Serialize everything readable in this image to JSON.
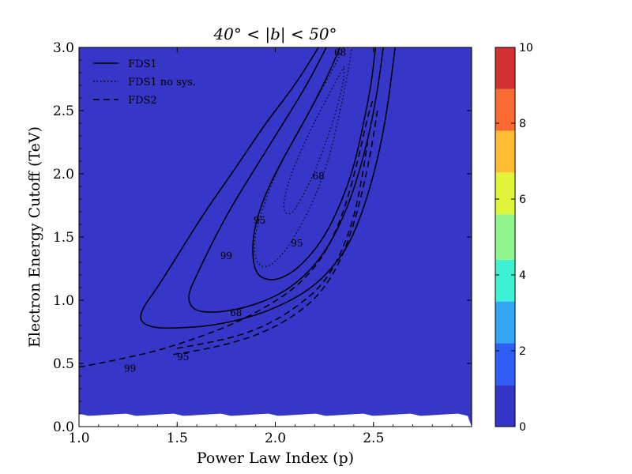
{
  "chart_data": {
    "type": "contour",
    "title": "40° < |b| < 50°",
    "xlabel": "Power Law Index (p)",
    "ylabel": "Electron Energy Cutoff (TeV)",
    "xlim": [
      1.0,
      3.0
    ],
    "ylim": [
      0.0,
      3.0
    ],
    "xticks": [
      "1.0",
      "1.5",
      "2.0",
      "2.5"
    ],
    "yticks": [
      "0.0",
      "0.5",
      "1.0",
      "1.5",
      "2.0",
      "2.5",
      "3.0"
    ],
    "background_level_color": "#3636c8",
    "colorbar": {
      "range": [
        0,
        10
      ],
      "ticks": [
        "0",
        "2",
        "4",
        "6",
        "8",
        "10"
      ],
      "bands": [
        {
          "from": 0,
          "to": 1.1,
          "color": "#3434c6"
        },
        {
          "from": 1.1,
          "to": 2.2,
          "color": "#2f5ef6"
        },
        {
          "from": 2.2,
          "to": 3.3,
          "color": "#32a6f5"
        },
        {
          "from": 3.3,
          "to": 4.4,
          "color": "#3ef0d4"
        },
        {
          "from": 4.4,
          "to": 5.6,
          "color": "#8ef68c"
        },
        {
          "from": 5.6,
          "to": 6.7,
          "color": "#e0f53a"
        },
        {
          "from": 6.7,
          "to": 7.8,
          "color": "#fdbc32"
        },
        {
          "from": 7.8,
          "to": 8.9,
          "color": "#fb6a31"
        },
        {
          "from": 8.9,
          "to": 10,
          "color": "#d03232"
        }
      ]
    },
    "legend": {
      "placement": "top-left",
      "entries": [
        {
          "label": "FDS1",
          "style": "solid"
        },
        {
          "label": "FDS1 no sys.",
          "style": "dotted"
        },
        {
          "label": "FDS2",
          "style": "dashed"
        }
      ]
    },
    "series": [
      {
        "name": "FDS1",
        "level": "99",
        "style": "solid",
        "points": [
          [
            2.22,
            3.0
          ],
          [
            2.1,
            2.7
          ],
          [
            1.95,
            2.4
          ],
          [
            1.8,
            2.05
          ],
          [
            1.65,
            1.72
          ],
          [
            1.52,
            1.4
          ],
          [
            1.4,
            1.1
          ],
          [
            1.32,
            0.93
          ],
          [
            1.31,
            0.83
          ],
          [
            1.38,
            0.78
          ],
          [
            1.5,
            0.78
          ],
          [
            1.62,
            0.79
          ],
          [
            1.75,
            0.82
          ],
          [
            1.9,
            0.88
          ],
          [
            2.03,
            0.96
          ],
          [
            2.15,
            1.06
          ],
          [
            2.26,
            1.2
          ],
          [
            2.37,
            1.42
          ],
          [
            2.45,
            1.72
          ],
          [
            2.52,
            2.1
          ],
          [
            2.57,
            2.5
          ],
          [
            2.61,
            3.0
          ]
        ]
      },
      {
        "name": "FDS1",
        "level": "95",
        "style": "solid",
        "points": [
          [
            2.26,
            3.0
          ],
          [
            2.16,
            2.7
          ],
          [
            2.02,
            2.35
          ],
          [
            1.9,
            2.05
          ],
          [
            1.78,
            1.75
          ],
          [
            1.68,
            1.46
          ],
          [
            1.6,
            1.2
          ],
          [
            1.55,
            1.03
          ],
          [
            1.58,
            0.92
          ],
          [
            1.68,
            0.9
          ],
          [
            1.82,
            0.93
          ],
          [
            1.96,
            1.0
          ],
          [
            2.08,
            1.1
          ],
          [
            2.2,
            1.27
          ],
          [
            2.3,
            1.5
          ],
          [
            2.39,
            1.82
          ],
          [
            2.47,
            2.25
          ],
          [
            2.52,
            2.65
          ],
          [
            2.55,
            3.0
          ]
        ]
      },
      {
        "name": "FDS1",
        "level": "68",
        "style": "solid",
        "points": [
          [
            2.33,
            3.0
          ],
          [
            2.26,
            2.75
          ],
          [
            2.16,
            2.45
          ],
          [
            2.05,
            2.15
          ],
          [
            1.96,
            1.88
          ],
          [
            1.9,
            1.62
          ],
          [
            1.88,
            1.4
          ],
          [
            1.9,
            1.2
          ],
          [
            1.98,
            1.15
          ],
          [
            2.07,
            1.2
          ],
          [
            2.16,
            1.32
          ],
          [
            2.25,
            1.5
          ],
          [
            2.33,
            1.75
          ],
          [
            2.4,
            2.05
          ],
          [
            2.45,
            2.4
          ],
          [
            2.49,
            2.72
          ],
          [
            2.51,
            3.0
          ]
        ]
      },
      {
        "name": "FDS1 no sys.",
        "level": "95",
        "style": "dotted",
        "points": [
          [
            2.35,
            3.0
          ],
          [
            2.25,
            2.7
          ],
          [
            2.12,
            2.35
          ],
          [
            2.0,
            2.0
          ],
          [
            1.93,
            1.7
          ],
          [
            1.89,
            1.48
          ],
          [
            1.9,
            1.3
          ],
          [
            1.95,
            1.25
          ],
          [
            2.02,
            1.33
          ],
          [
            2.1,
            1.5
          ],
          [
            2.2,
            1.8
          ],
          [
            2.28,
            2.15
          ],
          [
            2.33,
            2.5
          ],
          [
            2.37,
            2.8
          ],
          [
            2.39,
            3.0
          ]
        ]
      },
      {
        "name": "FDS1 no sys.",
        "level": "68",
        "style": "dotted",
        "points": [
          [
            2.35,
            2.85
          ],
          [
            2.27,
            2.62
          ],
          [
            2.18,
            2.35
          ],
          [
            2.1,
            2.08
          ],
          [
            2.05,
            1.85
          ],
          [
            2.04,
            1.7
          ],
          [
            2.08,
            1.67
          ],
          [
            2.14,
            1.82
          ],
          [
            2.21,
            2.05
          ],
          [
            2.27,
            2.3
          ],
          [
            2.32,
            2.55
          ],
          [
            2.35,
            2.75
          ],
          [
            2.35,
            2.85
          ]
        ]
      },
      {
        "name": "FDS2",
        "level": "99",
        "style": "dashed",
        "points": [
          [
            1.0,
            0.47
          ],
          [
            1.2,
            0.53
          ],
          [
            1.4,
            0.6
          ],
          [
            1.6,
            0.7
          ],
          [
            1.8,
            0.82
          ],
          [
            1.98,
            0.97
          ],
          [
            2.12,
            1.12
          ],
          [
            2.25,
            1.35
          ],
          [
            2.35,
            1.7
          ],
          [
            2.42,
            2.1
          ],
          [
            2.47,
            2.45
          ],
          [
            2.5,
            2.6
          ]
        ]
      },
      {
        "name": "FDS2",
        "level": "95",
        "style": "dashed",
        "points": [
          [
            1.48,
            0.57
          ],
          [
            1.6,
            0.6
          ],
          [
            1.78,
            0.66
          ],
          [
            1.95,
            0.75
          ],
          [
            2.1,
            0.88
          ],
          [
            2.23,
            1.05
          ],
          [
            2.33,
            1.3
          ],
          [
            2.4,
            1.6
          ],
          [
            2.45,
            1.9
          ],
          [
            2.49,
            2.2
          ],
          [
            2.52,
            2.5
          ]
        ]
      },
      {
        "name": "FDS2",
        "level": "68",
        "style": "dashed",
        "points": [
          [
            1.5,
            0.62
          ],
          [
            1.65,
            0.66
          ],
          [
            1.82,
            0.72
          ],
          [
            1.98,
            0.82
          ],
          [
            2.12,
            0.96
          ],
          [
            2.24,
            1.12
          ],
          [
            2.33,
            1.35
          ],
          [
            2.4,
            1.65
          ],
          [
            2.44,
            1.95
          ],
          [
            2.47,
            2.25
          ]
        ]
      }
    ],
    "contour_labels": [
      {
        "text": "99",
        "x": 1.75,
        "y": 1.35
      },
      {
        "text": "95",
        "x": 1.92,
        "y": 1.63
      },
      {
        "text": "68",
        "x": 2.33,
        "y": 2.96
      },
      {
        "text": "68",
        "x": 2.22,
        "y": 1.98
      },
      {
        "text": "95",
        "x": 2.11,
        "y": 1.45
      },
      {
        "text": "68",
        "x": 1.8,
        "y": 0.9
      },
      {
        "text": "95",
        "x": 1.53,
        "y": 0.55
      },
      {
        "text": "99",
        "x": 1.26,
        "y": 0.46
      }
    ]
  }
}
